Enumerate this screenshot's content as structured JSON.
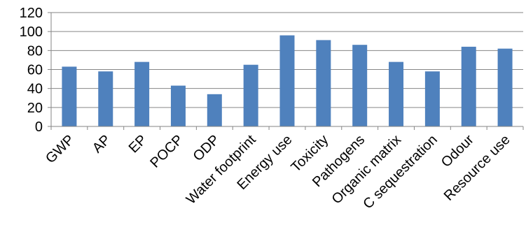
{
  "chart_data": {
    "type": "bar",
    "title": "",
    "xlabel": "",
    "ylabel": "",
    "categories": [
      "GWP",
      "AP",
      "EP",
      "POCP",
      "ODP",
      "Water footprint",
      "Energy use",
      "Toxicity",
      "Pathogens",
      "Organic matrix",
      "C sequestration",
      "Odour",
      "Resource use"
    ],
    "values": [
      63,
      58,
      68,
      43,
      34,
      65,
      96,
      91,
      86,
      68,
      58,
      84,
      82
    ],
    "ylim": [
      0,
      120
    ],
    "yticks": [
      0,
      20,
      40,
      60,
      80,
      100,
      120
    ],
    "grid": true,
    "legend": "none",
    "bar_color": "#4f81bd",
    "grid_color": "#868686",
    "axis_color": "#868686"
  }
}
